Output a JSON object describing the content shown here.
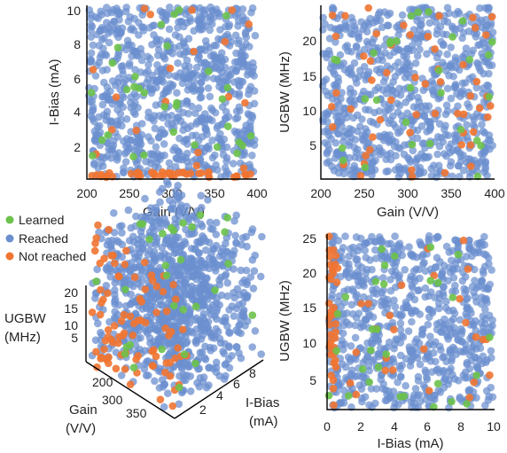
{
  "chart_data": [
    {
      "id": "gain-ibias",
      "type": "scatter",
      "xlabel": "Gain (V/V)",
      "ylabel": "I-Bias (mA)",
      "xlim": [
        200,
        400
      ],
      "ylim": [
        0.2,
        10
      ],
      "xticks": [
        "200",
        "250",
        "300",
        "350",
        "400"
      ],
      "yticks": [
        "2",
        "4",
        "6",
        "8",
        "10"
      ],
      "density": {
        "learned": 32,
        "reached": 820,
        "not_reached": 60
      },
      "note_not_reached": "concentrated near the lowest I-Bias values"
    },
    {
      "id": "gain-ugbw",
      "type": "scatter",
      "xlabel": "Gain (V/V)",
      "ylabel": "UGBW (MHz)",
      "xlim": [
        200,
        400
      ],
      "ylim": [
        1,
        25
      ],
      "xticks": [
        "200",
        "250",
        "300",
        "350",
        "400"
      ],
      "yticks": [
        "5",
        "10",
        "15",
        "20"
      ],
      "density": {
        "learned": 30,
        "reached": 780,
        "not_reached": 55
      }
    },
    {
      "id": "3d-view",
      "type": "scatter",
      "zlabel": [
        "UGBW",
        "(MHz)"
      ],
      "xlabel": [
        "Gain",
        "(V/V)"
      ],
      "ylabel": [
        "I-Bias",
        "(mA)"
      ],
      "zticks": [
        "5",
        "10",
        "15",
        "20"
      ],
      "xticks": [
        "200",
        "300",
        "350"
      ],
      "yticks": [
        "2",
        "4",
        "6",
        "8"
      ],
      "density": {
        "learned": 30,
        "reached": 950,
        "not_reached": 90
      }
    },
    {
      "id": "ibias-ugbw",
      "type": "scatter",
      "xlabel": "I-Bias (mA)",
      "ylabel": "UGBW (MHz)",
      "xlim": [
        0,
        10
      ],
      "ylim": [
        1,
        25
      ],
      "xticks": [
        "0",
        "2",
        "4",
        "6",
        "8",
        "10"
      ],
      "yticks": [
        "5",
        "10",
        "15",
        "20",
        "25"
      ],
      "density": {
        "learned": 30,
        "reached": 780,
        "not_reached": 65
      },
      "note_not_reached": "concentrated near the lowest I-Bias values"
    }
  ],
  "legend": {
    "placement": "left-middle",
    "items": [
      {
        "label": "Learned",
        "color": "#6cc24a"
      },
      {
        "label": "Reached",
        "color": "#6b8fcf"
      },
      {
        "label": "Not reached",
        "color": "#f07432"
      }
    ]
  }
}
